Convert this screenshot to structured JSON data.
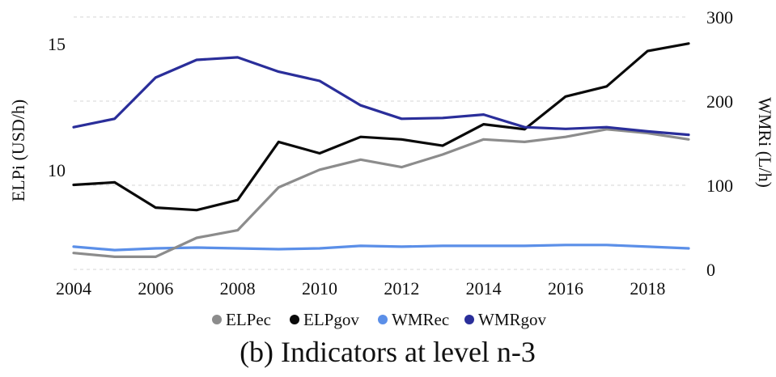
{
  "chart_data": {
    "type": "line",
    "caption": "(b) Indicators at level n-3",
    "x": [
      2004,
      2005,
      2006,
      2007,
      2008,
      2009,
      2010,
      2011,
      2012,
      2013,
      2014,
      2015,
      2016,
      2017,
      2018,
      2019
    ],
    "x_ticks": [
      2004,
      2006,
      2008,
      2010,
      2012,
      2014,
      2016,
      2018
    ],
    "x_tick_labels": [
      "2004",
      "2006",
      "2008",
      "2010",
      "2012",
      "2014",
      "2016",
      "2018"
    ],
    "xlim": [
      2004,
      2019
    ],
    "y_left": {
      "label": "ELPi (USD/h)",
      "ticks": [
        10,
        15
      ],
      "tick_labels": [
        "10",
        "15"
      ],
      "lim": [
        6.05,
        16.05
      ]
    },
    "y_right": {
      "label": "WMRi (L/h)",
      "ticks": [
        0,
        100,
        200,
        300
      ],
      "tick_labels": [
        "0",
        "100",
        "200",
        "300"
      ],
      "lim": [
        0,
        300
      ]
    },
    "grid": true,
    "legend_position": "bottom",
    "series": [
      {
        "name": "ELPec",
        "axis": "left",
        "color": "#8c8c8c",
        "values": [
          6.7,
          6.55,
          6.55,
          7.3,
          7.6,
          9.3,
          10.0,
          10.4,
          10.1,
          10.6,
          11.2,
          11.1,
          11.3,
          11.6,
          11.45,
          11.2
        ]
      },
      {
        "name": "ELPgov",
        "axis": "left",
        "color": "#0a0a0a",
        "values": [
          9.4,
          9.5,
          8.5,
          8.4,
          8.8,
          11.1,
          10.65,
          11.3,
          11.2,
          10.95,
          11.8,
          11.6,
          12.9,
          13.3,
          14.7,
          15.0
        ]
      },
      {
        "name": "WMRec",
        "axis": "right",
        "color": "#5b8fe8",
        "values": [
          27,
          23,
          25,
          26,
          25,
          24,
          25,
          28,
          27,
          28,
          28,
          28,
          29,
          29,
          27,
          25
        ]
      },
      {
        "name": "WMRgov",
        "axis": "right",
        "color": "#2a2e9a",
        "values": [
          169,
          179,
          228,
          249,
          252,
          235,
          224,
          195,
          179,
          180,
          184,
          169,
          167,
          169,
          164,
          160
        ]
      }
    ]
  }
}
